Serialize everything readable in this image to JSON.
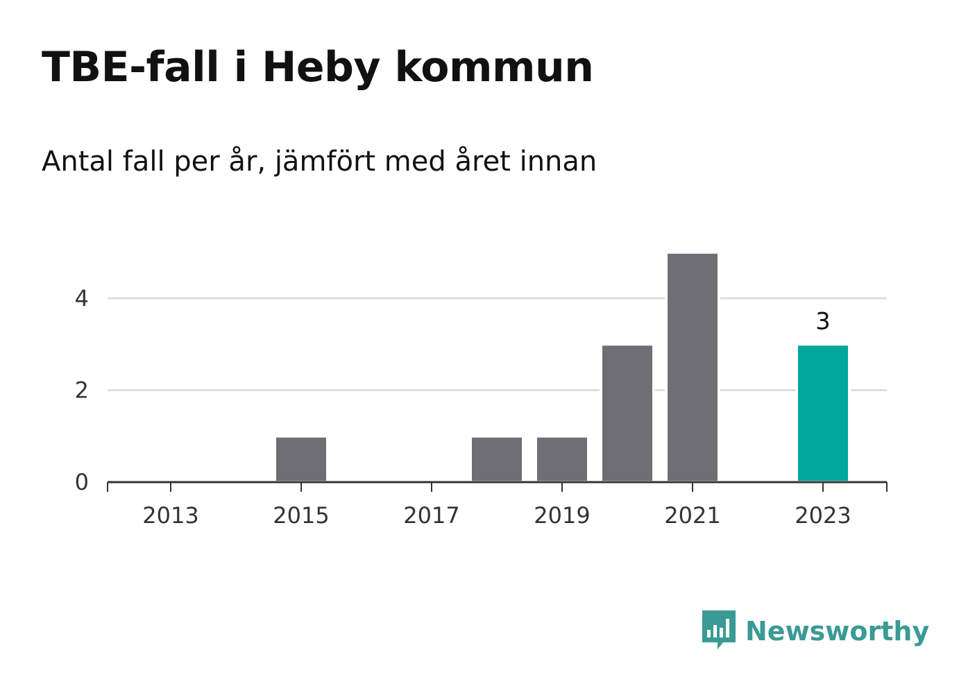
{
  "title": "TBE-fall i Heby kommun",
  "subtitle": "Antal fall per år, jämfört med året innan",
  "brand": {
    "name": "Newsworthy",
    "icon": "bar-chart-speech-bubble-icon",
    "color": "#3a9a94"
  },
  "colors": {
    "bar": "#6f6e74",
    "highlight": "#00a59b",
    "grid": "#dddddd",
    "axis": "#333333"
  },
  "chart_data": {
    "type": "bar",
    "title": "TBE-fall i Heby kommun",
    "subtitle": "Antal fall per år, jämfört med året innan",
    "xlabel": "",
    "ylabel": "",
    "categories": [
      "2013",
      "2014",
      "2015",
      "2016",
      "2017",
      "2018",
      "2019",
      "2020",
      "2021",
      "2022",
      "2023"
    ],
    "values": [
      0,
      0,
      1,
      0,
      0,
      1,
      1,
      3,
      5,
      0,
      3
    ],
    "highlight_index": 10,
    "highlight_label": "3",
    "x_tick_labels": [
      "2013",
      "2015",
      "2017",
      "2019",
      "2021",
      "2023"
    ],
    "y_ticks": [
      0,
      2,
      4
    ],
    "ylim": [
      0,
      5
    ],
    "grid": true,
    "legend": "none"
  }
}
